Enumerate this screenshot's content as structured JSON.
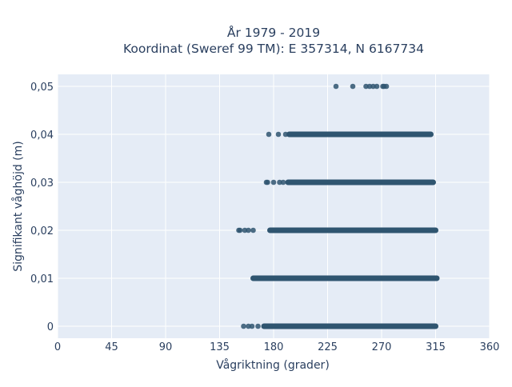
{
  "colors": {
    "plot_background": "#e5ecf6",
    "grid": "#ffffff",
    "marker": "#2f5570",
    "text": "#2a3f5f"
  },
  "chart_data": {
    "type": "scatter",
    "title_line1": "År 1979 - 2019",
    "title_line2": "Koordinat (Sweref 99 TM): E 357314, N 6167734",
    "xlabel": "Vågriktning (grader)",
    "ylabel": "Signifikant våghöjd (m)",
    "xlim": [
      0,
      360
    ],
    "ylim": [
      -0.0025,
      0.0525
    ],
    "x_ticks": [
      0,
      45,
      90,
      135,
      180,
      225,
      270,
      315,
      360
    ],
    "x_tick_labels": [
      "0",
      "45",
      "90",
      "135",
      "180",
      "225",
      "270",
      "315",
      "360"
    ],
    "y_ticks": [
      0,
      0.01,
      0.02,
      0.03,
      0.04,
      0.05
    ],
    "y_tick_labels": [
      "0",
      "0,01",
      "0,02",
      "0,03",
      "0,04",
      "0,05"
    ],
    "grid": true,
    "legend": "none",
    "bands": [
      {
        "y": 0.0,
        "sparse": [
          155,
          159,
          162,
          167
        ],
        "dense": [
          172,
          315
        ]
      },
      {
        "y": 0.01,
        "sparse": [],
        "dense": [
          163,
          316
        ]
      },
      {
        "y": 0.02,
        "sparse": [
          151,
          152,
          156,
          159,
          163
        ],
        "dense": [
          177,
          315
        ]
      },
      {
        "y": 0.03,
        "sparse": [
          174,
          175,
          180,
          185,
          188
        ],
        "dense": [
          192,
          313
        ]
      },
      {
        "y": 0.04,
        "sparse": [
          176,
          184,
          190
        ],
        "dense": [
          193,
          311
        ]
      },
      {
        "y": 0.05,
        "sparse": [
          232,
          246,
          257,
          260,
          263,
          266,
          271,
          272,
          274
        ],
        "dense": []
      }
    ]
  }
}
